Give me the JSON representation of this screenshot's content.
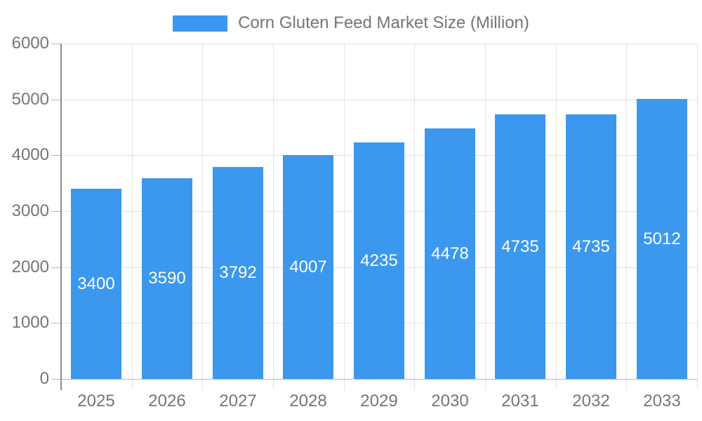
{
  "chart_data": {
    "type": "bar",
    "title": "Corn Gluten Feed Market Size (Million)",
    "legend_label": "Corn Gluten Feed Market Size (Million)",
    "legend_position": "top-center",
    "categories": [
      "2025",
      "2026",
      "2027",
      "2028",
      "2029",
      "2030",
      "2031",
      "2032",
      "2033"
    ],
    "series": [
      {
        "name": "Corn Gluten Feed Market Size (Million)",
        "values": [
          3400,
          3590,
          3792,
          4007,
          4235,
          4478,
          4735,
          4735,
          5012
        ]
      }
    ],
    "value_labels": [
      "3400",
      "3590",
      "3792",
      "4007",
      "4235",
      "4478",
      "4735",
      "4735",
      "5012"
    ],
    "xlabel": "",
    "ylabel": "",
    "ylim": [
      0,
      6000
    ],
    "yticks": [
      0,
      1000,
      2000,
      3000,
      4000,
      5000,
      6000
    ],
    "grid": true,
    "colors": {
      "bar": "#3b98ee",
      "bar_value_text": "#ffffff",
      "axis_text": "#757575",
      "gridline": "#e3e3e3",
      "y_axis_line": "#8e8e8e",
      "x_axis_line": "#b7b7b7",
      "background": "#ffffff"
    }
  }
}
